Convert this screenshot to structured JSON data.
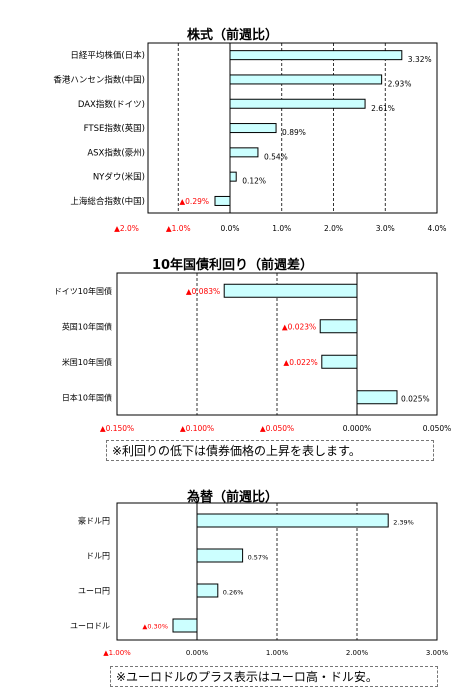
{
  "colors": {
    "bar_fill": "#ccffff",
    "bar_stroke": "#000000",
    "negative_text": "#ff0000",
    "grid": "#000000"
  },
  "notes": {
    "bonds": "※利回りの低下は債券価格の上昇を表します。",
    "fx": "※ユーロドルのプラス表示はユーロ高・ドル安。"
  },
  "chart_data": [
    {
      "type": "bar",
      "orientation": "horizontal",
      "title": "株式（前週比）",
      "categories": [
        "日経平均株価(日本)",
        "香港ハンセン指数(中国)",
        "DAX指数(ドイツ)",
        "FTSE指数(英国)",
        "ASX指数(豪州)",
        "NYダウ(米国)",
        "上海総合指数(中国)"
      ],
      "values": [
        3.32,
        2.93,
        2.61,
        0.89,
        0.54,
        0.12,
        -0.29
      ],
      "value_labels": [
        "3.32%",
        "2.93%",
        "2.61%",
        "0.89%",
        "0.54%",
        "0.12%",
        "▲0.29%"
      ],
      "xlim": [
        -2.0,
        4.0
      ],
      "xticks": [
        -2.0,
        -1.0,
        0.0,
        1.0,
        2.0,
        3.0,
        4.0
      ],
      "xtick_labels": [
        "▲2.0%",
        "▲1.0%",
        "0.0%",
        "1.0%",
        "2.0%",
        "3.0%",
        "4.0%"
      ],
      "grid": "dashed vertical"
    },
    {
      "type": "bar",
      "orientation": "horizontal",
      "title": "10年国債利回り（前週差）",
      "categories": [
        "ドイツ10年国債",
        "英国10年国債",
        "米国10年国債",
        "日本10年国債"
      ],
      "values": [
        -0.083,
        -0.023,
        -0.022,
        0.025
      ],
      "value_labels": [
        "▲0.083%",
        "▲0.023%",
        "▲0.022%",
        "0.025%"
      ],
      "xlim": [
        -0.15,
        0.05
      ],
      "xticks": [
        -0.15,
        -0.1,
        -0.05,
        0.0,
        0.05
      ],
      "xtick_labels": [
        "▲0.150%",
        "▲0.100%",
        "▲0.050%",
        "0.000%",
        "0.050%"
      ],
      "grid": "dashed vertical"
    },
    {
      "type": "bar",
      "orientation": "horizontal",
      "title": "為替（前週比）",
      "categories": [
        "豪ドル円",
        "ドル円",
        "ユーロ円",
        "ユーロドル"
      ],
      "values": [
        2.39,
        0.57,
        0.26,
        -0.3
      ],
      "value_labels": [
        "2.39%",
        "0.57%",
        "0.26%",
        "▲0.30%"
      ],
      "xlim": [
        -1.0,
        3.0
      ],
      "xticks": [
        -1.0,
        0.0,
        1.0,
        2.0,
        3.0
      ],
      "xtick_labels": [
        "▲1.00%",
        "0.00%",
        "1.00%",
        "2.00%",
        "3.00%"
      ],
      "grid": "dashed vertical"
    }
  ]
}
